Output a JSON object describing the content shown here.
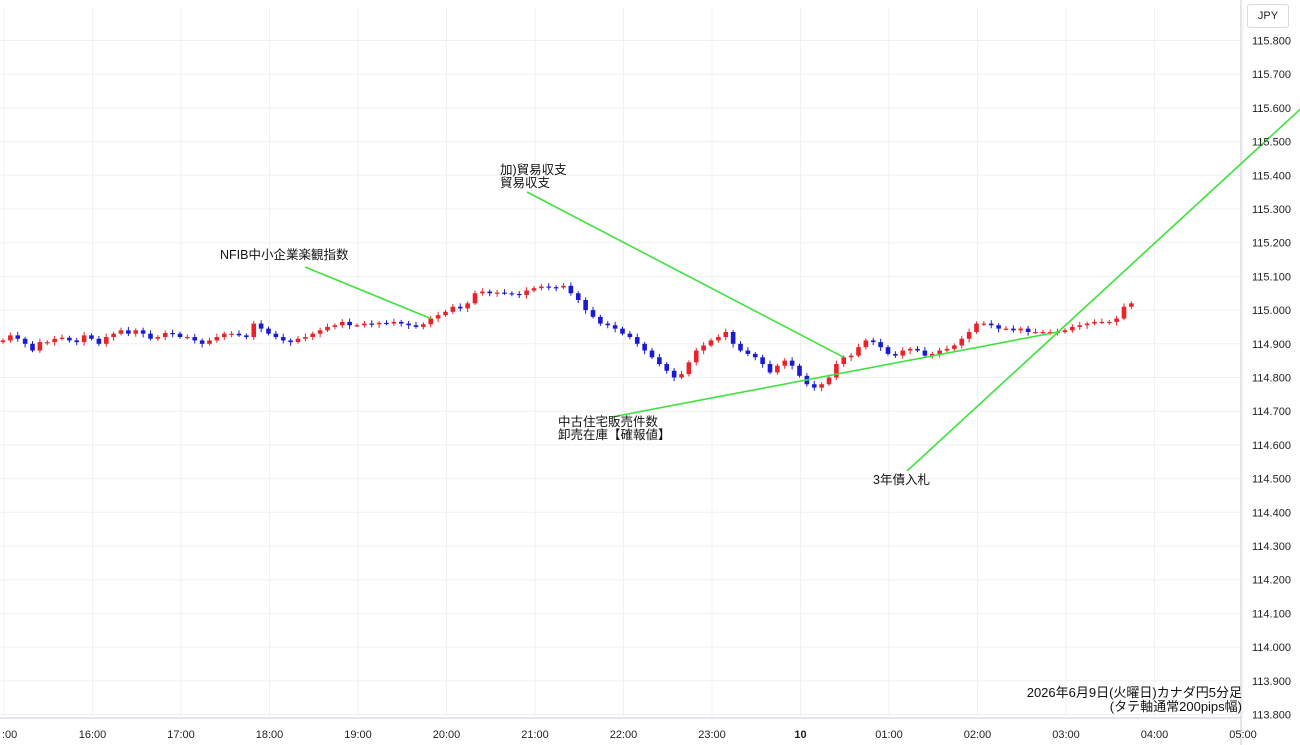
{
  "chart_data": {
    "type": "candlestick",
    "currency": "JPY",
    "timeframe_caption": "2026年6月9日(火曜日)カナダ円5分足",
    "axis_caption": "(タテ軸通常200pips幅)",
    "ylim": [
      113.8,
      115.8
    ],
    "y_ticks": [
      "115.800",
      "115.700",
      "115.600",
      "115.500",
      "115.400",
      "115.300",
      "115.200",
      "115.100",
      "115.000",
      "114.900",
      "114.800",
      "114.700",
      "114.600",
      "114.500",
      "114.400",
      "114.300",
      "114.200",
      "114.100",
      "114.000",
      "113.900",
      "113.800"
    ],
    "x_ticks": [
      ":00",
      "16:00",
      "17:00",
      "18:00",
      "19:00",
      "20:00",
      "21:00",
      "22:00",
      "23:00",
      "10",
      "01:00",
      "02:00",
      "03:00",
      "04:00",
      "05:00"
    ],
    "bold_x_tick": "10",
    "colors": {
      "up": "#e8232a",
      "down": "#1a1ad6",
      "annotation_line": "#3ee23e",
      "grid": "#eef0f3"
    },
    "candles": [
      114.91,
      114.925,
      114.915,
      114.9,
      114.88,
      114.905,
      114.905,
      114.915,
      114.918,
      114.91,
      114.905,
      114.925,
      114.915,
      114.9,
      114.92,
      114.93,
      114.94,
      114.93,
      114.94,
      114.93,
      114.915,
      114.92,
      114.932,
      114.93,
      114.92,
      114.92,
      114.91,
      114.9,
      114.91,
      114.92,
      114.93,
      114.93,
      114.925,
      114.92,
      114.96,
      114.945,
      114.93,
      114.92,
      114.91,
      114.905,
      114.915,
      114.92,
      114.93,
      114.94,
      114.95,
      114.955,
      114.965,
      114.955,
      114.955,
      114.96,
      114.958,
      114.962,
      114.96,
      114.965,
      114.96,
      114.955,
      114.95,
      114.958,
      114.975,
      114.985,
      114.995,
      115.01,
      115.005,
      115.02,
      115.05,
      115.055,
      115.05,
      115.052,
      115.05,
      115.048,
      115.045,
      115.058,
      115.065,
      115.07,
      115.068,
      115.067,
      115.072,
      115.05,
      115.03,
      115.0,
      114.98,
      114.96,
      114.955,
      114.945,
      114.93,
      114.92,
      114.9,
      114.88,
      114.86,
      114.84,
      114.82,
      114.8,
      114.81,
      114.845,
      114.88,
      114.895,
      114.91,
      114.92,
      114.935,
      114.9,
      114.88,
      114.87,
      114.86,
      114.84,
      114.815,
      114.835,
      114.85,
      114.835,
      114.805,
      114.78,
      114.77,
      114.78,
      114.8,
      114.84,
      114.86,
      114.865,
      114.89,
      114.91,
      114.905,
      114.89,
      114.87,
      114.865,
      114.88,
      114.885,
      114.88,
      114.865,
      114.87,
      114.88,
      114.885,
      114.895,
      114.915,
      114.935,
      114.96,
      114.96,
      114.955,
      114.945,
      114.945,
      114.94,
      114.945,
      114.935,
      114.935,
      114.935,
      114.935,
      114.935,
      114.94,
      114.95,
      114.955,
      114.96,
      114.965,
      114.965,
      114.965,
      114.975,
      115.01,
      115.02
    ],
    "annotations": [
      {
        "lines": [
          "NFIB中小企業楽観指数"
        ],
        "time_index": 58
      },
      {
        "lines": [
          "加)貿易収支",
          "貿易収支"
        ],
        "time_index": 114
      },
      {
        "lines": [
          "中古住宅販売件数",
          "卸売在庫【確報値】"
        ],
        "time_index": 143
      },
      {
        "lines": [
          "3年債入札"
        ],
        "time_index": 192
      }
    ]
  }
}
